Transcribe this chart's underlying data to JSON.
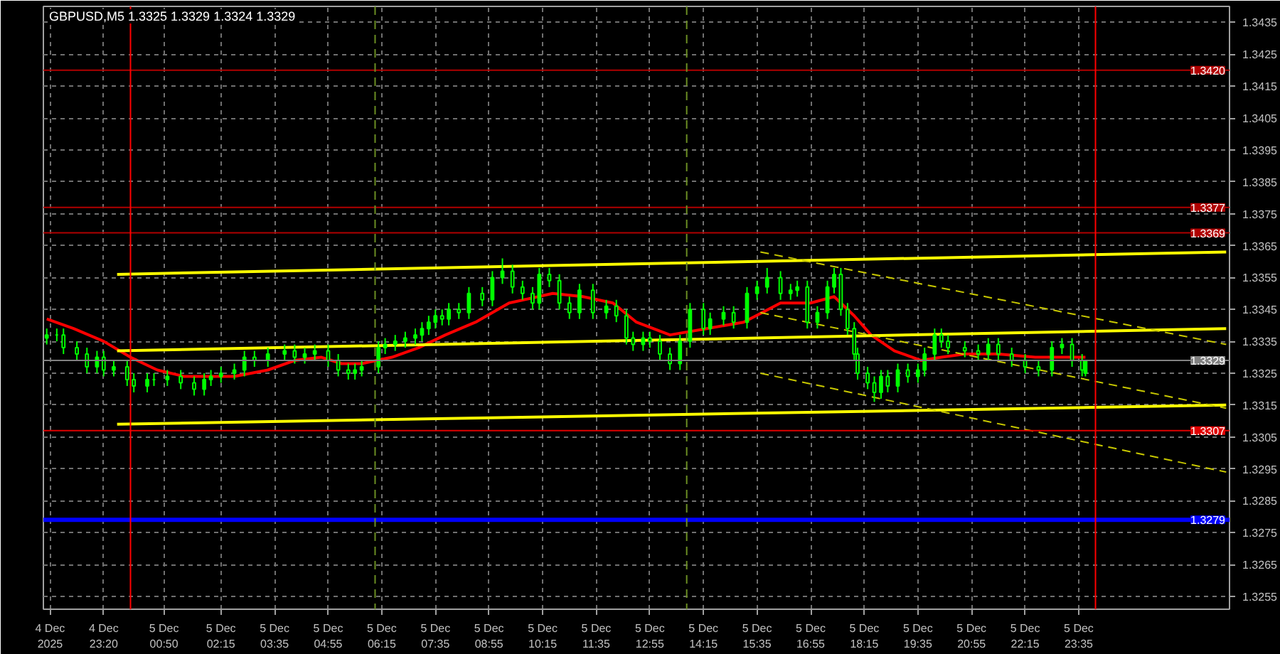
{
  "chart_data": {
    "type": "candlestick",
    "title": "GBPUSD,M5  1.3325 1.3329 1.3324 1.3329",
    "color": "#00ff00",
    "x": [
      "2025-12-04T21:55",
      "2025-12-04T22:10",
      "2025-12-04T22:20",
      "2025-12-04T22:40",
      "2025-12-04T22:55",
      "2025-12-04T23:10",
      "2025-12-04T23:20",
      "2025-12-04T23:35",
      "2025-12-04T23:55",
      "2025-12-05T00:05",
      "2025-12-05T00:25",
      "2025-12-05T00:35",
      "2025-12-05T00:55",
      "2025-12-05T01:15",
      "2025-12-05T01:35",
      "2025-12-05T01:50",
      "2025-12-05T02:00",
      "2025-12-05T02:15",
      "2025-12-05T02:35",
      "2025-12-05T02:50",
      "2025-12-05T03:05",
      "2025-12-05T03:25",
      "2025-12-05T03:50",
      "2025-12-05T04:05",
      "2025-12-05T04:20",
      "2025-12-05T04:35",
      "2025-12-05T04:55",
      "2025-12-05T05:10",
      "2025-12-05T05:25",
      "2025-12-05T05:35",
      "2025-12-05T05:45",
      "2025-12-05T06:10",
      "2025-12-05T06:20",
      "2025-12-05T06:35",
      "2025-12-05T06:50",
      "2025-12-05T07:05",
      "2025-12-05T07:15",
      "2025-12-05T07:25",
      "2025-12-05T07:35",
      "2025-12-05T07:45",
      "2025-12-05T07:55",
      "2025-12-05T08:10",
      "2025-12-05T08:25",
      "2025-12-05T08:45",
      "2025-12-05T09:00",
      "2025-12-05T09:15",
      "2025-12-05T09:30",
      "2025-12-05T09:45",
      "2025-12-05T10:00",
      "2025-12-05T10:10",
      "2025-12-05T10:25",
      "2025-12-05T10:40",
      "2025-12-05T10:55",
      "2025-12-05T11:10",
      "2025-12-05T11:30",
      "2025-12-05T11:50",
      "2025-12-05T12:05",
      "2025-12-05T12:20",
      "2025-12-05T12:30",
      "2025-12-05T12:45",
      "2025-12-05T12:55",
      "2025-12-05T13:10",
      "2025-12-05T13:25",
      "2025-12-05T13:40",
      "2025-12-05T13:55",
      "2025-12-05T14:15",
      "2025-12-05T14:25",
      "2025-12-05T14:45",
      "2025-12-05T15:00",
      "2025-12-05T15:20",
      "2025-12-05T15:35",
      "2025-12-05T15:50",
      "2025-12-05T16:10",
      "2025-12-05T16:25",
      "2025-12-05T16:35",
      "2025-12-05T16:50",
      "2025-12-05T17:05",
      "2025-12-05T17:20",
      "2025-12-05T17:30",
      "2025-12-05T17:40",
      "2025-12-05T17:50",
      "2025-12-05T18:00",
      "2025-12-05T18:05",
      "2025-12-05T18:20",
      "2025-12-05T18:30",
      "2025-12-05T18:40",
      "2025-12-05T18:50",
      "2025-12-05T19:05",
      "2025-12-05T19:20",
      "2025-12-05T19:35",
      "2025-12-05T19:45",
      "2025-12-05T20:00",
      "2025-12-05T20:10",
      "2025-12-05T20:20",
      "2025-12-05T20:45",
      "2025-12-05T21:05",
      "2025-12-05T21:20",
      "2025-12-05T21:35",
      "2025-12-05T21:55",
      "2025-12-05T22:15",
      "2025-12-05T22:35",
      "2025-12-05T22:55",
      "2025-12-05T23:10",
      "2025-12-05T23:25",
      "2025-12-05T23:40",
      "2025-12-05T23:45"
    ],
    "ohlc": [
      [
        1.3336,
        1.3339,
        1.3334,
        1.3337
      ],
      [
        1.3337,
        1.3339,
        1.3335,
        1.3337
      ],
      [
        1.3337,
        1.3339,
        1.3331,
        1.3333
      ],
      [
        1.3333,
        1.3335,
        1.3329,
        1.3331
      ],
      [
        1.3331,
        1.3333,
        1.3325,
        1.3327
      ],
      [
        1.3327,
        1.3332,
        1.3325,
        1.333
      ],
      [
        1.333,
        1.3332,
        1.3324,
        1.3326
      ],
      [
        1.3326,
        1.3329,
        1.3324,
        1.3327
      ],
      [
        1.3327,
        1.3329,
        1.3321,
        1.3323
      ],
      [
        1.3323,
        1.3325,
        1.3319,
        1.3321
      ],
      [
        1.3321,
        1.3325,
        1.3319,
        1.3323
      ],
      [
        1.3323,
        1.3325,
        1.3321,
        1.3323
      ],
      [
        1.3323,
        1.3326,
        1.3321,
        1.3324
      ],
      [
        1.3324,
        1.3326,
        1.332,
        1.3322
      ],
      [
        1.3322,
        1.3324,
        1.3318,
        1.332
      ],
      [
        1.332,
        1.3325,
        1.3318,
        1.3323
      ],
      [
        1.3323,
        1.3326,
        1.3321,
        1.3324
      ],
      [
        1.3324,
        1.3327,
        1.3322,
        1.3325
      ],
      [
        1.3325,
        1.3328,
        1.3323,
        1.3326
      ],
      [
        1.3326,
        1.3332,
        1.3324,
        1.333
      ],
      [
        1.333,
        1.3332,
        1.3327,
        1.3329
      ],
      [
        1.3329,
        1.3333,
        1.3327,
        1.3331
      ],
      [
        1.3331,
        1.3334,
        1.3329,
        1.3332
      ],
      [
        1.3332,
        1.3334,
        1.3328,
        1.333
      ],
      [
        1.333,
        1.3333,
        1.3328,
        1.3331
      ],
      [
        1.3331,
        1.3334,
        1.3329,
        1.3332
      ],
      [
        1.3332,
        1.3334,
        1.3327,
        1.3329
      ],
      [
        1.3329,
        1.3331,
        1.3324,
        1.3326
      ],
      [
        1.3326,
        1.3328,
        1.3323,
        1.3325
      ],
      [
        1.3325,
        1.3328,
        1.3323,
        1.3326
      ],
      [
        1.3326,
        1.3329,
        1.3324,
        1.3327
      ],
      [
        1.3327,
        1.3335,
        1.3325,
        1.3333
      ],
      [
        1.3333,
        1.3336,
        1.3331,
        1.3334
      ],
      [
        1.3334,
        1.3337,
        1.3332,
        1.3335
      ],
      [
        1.3335,
        1.3338,
        1.3333,
        1.3336
      ],
      [
        1.3336,
        1.3339,
        1.3334,
        1.3337
      ],
      [
        1.3337,
        1.3341,
        1.3335,
        1.3339
      ],
      [
        1.3339,
        1.3343,
        1.3337,
        1.3341
      ],
      [
        1.3341,
        1.3345,
        1.3339,
        1.3343
      ],
      [
        1.3343,
        1.3345,
        1.334,
        1.3342
      ],
      [
        1.3342,
        1.3347,
        1.334,
        1.3345
      ],
      [
        1.3345,
        1.3347,
        1.3342,
        1.3344
      ],
      [
        1.3344,
        1.3352,
        1.3342,
        1.335
      ],
      [
        1.335,
        1.3352,
        1.3346,
        1.3348
      ],
      [
        1.3348,
        1.3357,
        1.3346,
        1.3355
      ],
      [
        1.3355,
        1.3361,
        1.3353,
        1.3357
      ],
      [
        1.3357,
        1.3359,
        1.335,
        1.3352
      ],
      [
        1.3352,
        1.3354,
        1.3348,
        1.335
      ],
      [
        1.335,
        1.3352,
        1.3345,
        1.3347
      ],
      [
        1.3347,
        1.3358,
        1.3345,
        1.3356
      ],
      [
        1.3356,
        1.3358,
        1.3352,
        1.3354
      ],
      [
        1.3354,
        1.3356,
        1.3345,
        1.3347
      ],
      [
        1.3347,
        1.3349,
        1.3342,
        1.3344
      ],
      [
        1.3344,
        1.3353,
        1.3342,
        1.3351
      ],
      [
        1.3351,
        1.3353,
        1.3342,
        1.3344
      ],
      [
        1.3344,
        1.3348,
        1.3342,
        1.3346
      ],
      [
        1.3346,
        1.3348,
        1.3341,
        1.3343
      ],
      [
        1.3343,
        1.3345,
        1.3334,
        1.3336
      ],
      [
        1.3336,
        1.3338,
        1.3332,
        1.3334
      ],
      [
        1.3334,
        1.3338,
        1.3332,
        1.3336
      ],
      [
        1.3336,
        1.3338,
        1.3333,
        1.3335
      ],
      [
        1.3335,
        1.3337,
        1.3329,
        1.3331
      ],
      [
        1.3331,
        1.3333,
        1.3326,
        1.3328
      ],
      [
        1.3328,
        1.3337,
        1.3326,
        1.3335
      ],
      [
        1.3335,
        1.3347,
        1.3333,
        1.3345
      ],
      [
        1.3345,
        1.3347,
        1.3337,
        1.3339
      ],
      [
        1.3339,
        1.3344,
        1.3337,
        1.3342
      ],
      [
        1.3342,
        1.3346,
        1.334,
        1.3344
      ],
      [
        1.3344,
        1.3346,
        1.3339,
        1.3341
      ],
      [
        1.3341,
        1.3352,
        1.3339,
        1.335
      ],
      [
        1.335,
        1.3354,
        1.3348,
        1.3352
      ],
      [
        1.3352,
        1.3358,
        1.335,
        1.3355
      ],
      [
        1.3355,
        1.3357,
        1.3348,
        1.335
      ],
      [
        1.335,
        1.3353,
        1.3348,
        1.3351
      ],
      [
        1.3351,
        1.3354,
        1.3349,
        1.3352
      ],
      [
        1.3352,
        1.3354,
        1.3339,
        1.3341
      ],
      [
        1.3341,
        1.3346,
        1.3339,
        1.3344
      ],
      [
        1.3344,
        1.3354,
        1.3342,
        1.3352
      ],
      [
        1.3352,
        1.3358,
        1.335,
        1.3356
      ],
      [
        1.3356,
        1.3358,
        1.3343,
        1.3345
      ],
      [
        1.3345,
        1.3347,
        1.3337,
        1.3339
      ],
      [
        1.3339,
        1.3341,
        1.3329,
        1.3331
      ],
      [
        1.3331,
        1.3333,
        1.3323,
        1.3325
      ],
      [
        1.3325,
        1.3327,
        1.332,
        1.3322
      ],
      [
        1.3322,
        1.3324,
        1.3316,
        1.3319
      ],
      [
        1.3319,
        1.3326,
        1.3317,
        1.3324
      ],
      [
        1.3324,
        1.3326,
        1.3319,
        1.3321
      ],
      [
        1.3321,
        1.3328,
        1.3319,
        1.3326
      ],
      [
        1.3326,
        1.3328,
        1.3322,
        1.3324
      ],
      [
        1.3324,
        1.3328,
        1.3322,
        1.3326
      ],
      [
        1.3326,
        1.3333,
        1.3324,
        1.3331
      ],
      [
        1.3331,
        1.3339,
        1.3329,
        1.3337
      ],
      [
        1.3337,
        1.3339,
        1.3333,
        1.3335
      ],
      [
        1.3335,
        1.3337,
        1.3331,
        1.3333
      ],
      [
        1.3333,
        1.3335,
        1.333,
        1.3332
      ],
      [
        1.3332,
        1.3334,
        1.3329,
        1.3331
      ],
      [
        1.3331,
        1.3336,
        1.3329,
        1.3334
      ],
      [
        1.3334,
        1.3336,
        1.3329,
        1.3331
      ],
      [
        1.3331,
        1.3333,
        1.3327,
        1.3329
      ],
      [
        1.3329,
        1.3331,
        1.3325,
        1.3327
      ],
      [
        1.3327,
        1.3329,
        1.3324,
        1.3326
      ],
      [
        1.3326,
        1.3335,
        1.3324,
        1.3333
      ],
      [
        1.3333,
        1.3336,
        1.3331,
        1.3334
      ],
      [
        1.3334,
        1.3336,
        1.3327,
        1.3329
      ],
      [
        1.3329,
        1.3331,
        1.3324,
        1.3326
      ],
      [
        1.3325,
        1.3329,
        1.3324,
        1.3329
      ]
    ],
    "series": [
      {
        "type": "line",
        "color": "#ff0000",
        "x": [
          "2025-12-04T21:55",
          "2025-12-04T22:35",
          "2025-12-04T23:20",
          "2025-12-05T00:00",
          "2025-12-05T00:40",
          "2025-12-05T01:20",
          "2025-12-05T02:00",
          "2025-12-05T02:35",
          "2025-12-05T03:25",
          "2025-12-05T04:05",
          "2025-12-05T04:45",
          "2025-12-05T05:15",
          "2025-12-05T05:45",
          "2025-12-05T06:30",
          "2025-12-05T07:10",
          "2025-12-05T07:30",
          "2025-12-05T07:50",
          "2025-12-05T08:35",
          "2025-12-05T09:25",
          "2025-12-05T10:30",
          "2025-12-05T11:15",
          "2025-12-05T12:00",
          "2025-12-05T12:35",
          "2025-12-05T13:25",
          "2025-12-05T14:20",
          "2025-12-05T15:15",
          "2025-12-05T16:10",
          "2025-12-05T16:55",
          "2025-12-05T17:30",
          "2025-12-05T18:00",
          "2025-12-05T18:25",
          "2025-12-05T19:00",
          "2025-12-05T19:40",
          "2025-12-05T20:10",
          "2025-12-05T20:45",
          "2025-12-05T21:35",
          "2025-12-05T22:30",
          "2025-12-05T23:10",
          "2025-12-05T23:45"
        ],
        "values": [
          1.3342,
          1.3339,
          1.3335,
          1.333,
          1.3326,
          1.3324,
          1.3324,
          1.3324,
          1.3326,
          1.3329,
          1.333,
          1.3328,
          1.3328,
          1.333,
          1.3333,
          1.3335,
          1.3337,
          1.3341,
          1.3347,
          1.335,
          1.3349,
          1.3347,
          1.3341,
          1.3337,
          1.3339,
          1.3341,
          1.3347,
          1.3347,
          1.3349,
          1.3343,
          1.3337,
          1.3332,
          1.3329,
          1.333,
          1.3331,
          1.3331,
          1.333,
          1.333,
          1.333
        ]
      },
      {
        "type": "line",
        "color": "#ffff00",
        "x": [
          "2025-12-04T23:40",
          "2025-12-06T03:15"
        ],
        "values": [
          1.3356,
          1.3363
        ]
      },
      {
        "type": "line",
        "color": "#ffff00",
        "x": [
          "2025-12-04T23:40",
          "2025-12-06T03:15"
        ],
        "values": [
          1.3332,
          1.3339
        ]
      },
      {
        "type": "line",
        "color": "#ffff00",
        "x": [
          "2025-12-04T23:40",
          "2025-12-06T03:15"
        ],
        "values": [
          1.3309,
          1.3315
        ]
      },
      {
        "type": "line",
        "color": "#c8c800",
        "line_style": "dashed",
        "x": [
          "2025-12-05T15:40",
          "2025-12-06T03:15"
        ],
        "values": [
          1.3363,
          1.3334
        ]
      },
      {
        "type": "line",
        "color": "#c8c800",
        "line_style": "dashed",
        "x": [
          "2025-12-05T15:40",
          "2025-12-06T03:15"
        ],
        "values": [
          1.3344,
          1.3314
        ]
      },
      {
        "type": "line",
        "color": "#c8c800",
        "line_style": "dashed",
        "x": [
          "2025-12-05T15:40",
          "2025-12-06T03:15"
        ],
        "values": [
          1.3325,
          1.3294
        ]
      }
    ],
    "ref_lines": [
      {
        "axis": "y",
        "value": 1.342,
        "label": "1.3420",
        "color": "#b00000"
      },
      {
        "axis": "y",
        "value": 1.3377,
        "label": "1.3377",
        "color": "#b00000"
      },
      {
        "axis": "y",
        "value": 1.3369,
        "label": "1.3369",
        "color": "#b00000"
      },
      {
        "axis": "y",
        "value": 1.3307,
        "label": "1.3307",
        "color": "#e00000"
      },
      {
        "axis": "y",
        "value": 1.3279,
        "label": "1.3279",
        "color": "#0000ff"
      },
      {
        "axis": "y",
        "value": 1.3329,
        "label": "1.3329",
        "color": "#808080"
      },
      {
        "axis": "x",
        "value": "2025-12-05T00:00",
        "color": "#ff0000"
      },
      {
        "axis": "x",
        "value": "2025-12-06T00:00",
        "color": "#ff0000"
      },
      {
        "axis": "x",
        "value": "2025-12-05T06:05",
        "color": "#6b8e23",
        "line_style": "dashed"
      },
      {
        "axis": "x",
        "value": "2025-12-05T13:50",
        "color": "#6b8e23",
        "line_style": "dashed"
      }
    ],
    "xlim": [
      "2025-12-04T21:50",
      "2025-12-06T03:20"
    ],
    "ylim": [
      1.3251,
      1.344
    ],
    "xticks": [
      {
        "value": "2025-12-04T22:00",
        "label": "4 Dec 2025"
      },
      {
        "value": "2025-12-04T23:20",
        "label": "4 Dec 23:20"
      },
      {
        "value": "2025-12-05T00:50",
        "label": "5 Dec 00:50"
      },
      {
        "value": "2025-12-05T02:15",
        "label": "5 Dec 02:15"
      },
      {
        "value": "2025-12-05T03:35",
        "label": "5 Dec 03:35"
      },
      {
        "value": "2025-12-05T04:55",
        "label": "5 Dec 04:55"
      },
      {
        "value": "2025-12-05T06:15",
        "label": "5 Dec 06:15"
      },
      {
        "value": "2025-12-05T07:35",
        "label": "5 Dec 07:35"
      },
      {
        "value": "2025-12-05T08:55",
        "label": "5 Dec 08:55"
      },
      {
        "value": "2025-12-05T10:15",
        "label": "5 Dec 10:15"
      },
      {
        "value": "2025-12-05T11:35",
        "label": "5 Dec 11:35"
      },
      {
        "value": "2025-12-05T12:55",
        "label": "5 Dec 12:55"
      },
      {
        "value": "2025-12-05T14:15",
        "label": "5 Dec 14:15"
      },
      {
        "value": "2025-12-05T15:35",
        "label": "5 Dec 15:35"
      },
      {
        "value": "2025-12-05T16:55",
        "label": "5 Dec 16:55"
      },
      {
        "value": "2025-12-05T18:15",
        "label": "5 Dec 18:15"
      },
      {
        "value": "2025-12-05T19:35",
        "label": "5 Dec 19:35"
      },
      {
        "value": "2025-12-05T20:55",
        "label": "5 Dec 20:55"
      },
      {
        "value": "2025-12-05T22:15",
        "label": "5 Dec 22:15"
      },
      {
        "value": "2025-12-05T23:35",
        "label": "5 Dec 23:35"
      }
    ],
    "yticks": [
      1.3255,
      1.3265,
      1.3275,
      1.3285,
      1.3295,
      1.3305,
      1.3315,
      1.3325,
      1.3335,
      1.3345,
      1.3355,
      1.3365,
      1.3375,
      1.3385,
      1.3395,
      1.3405,
      1.3415,
      1.3425,
      1.3435
    ],
    "grid": true
  }
}
